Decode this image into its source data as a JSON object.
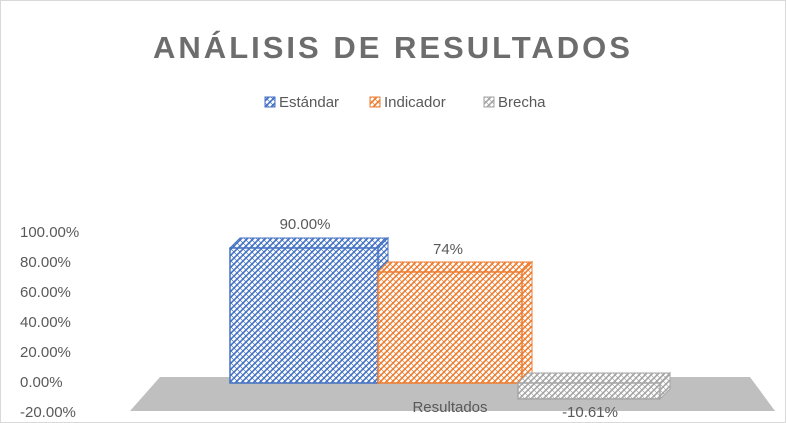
{
  "chart_data": {
    "type": "bar3d",
    "title": "ANÁLISIS DE RESULTADOS",
    "categories": [
      "Resultados"
    ],
    "series": [
      {
        "name": "Estándar",
        "color": "#4472c4",
        "values": [
          90
        ],
        "value_labels": [
          "90.00%"
        ]
      },
      {
        "name": "Indicador",
        "color": "#ed7d31",
        "values": [
          74
        ],
        "value_labels": [
          "74%"
        ]
      },
      {
        "name": "Brecha",
        "color": "#a5a5a5",
        "values": [
          -10.61
        ],
        "value_labels": [
          "-10.61%"
        ]
      }
    ],
    "ylim": [
      -20,
      100
    ],
    "yticks": [
      {
        "value": -20,
        "label": "-20.00%"
      },
      {
        "value": 0,
        "label": "0.00%"
      },
      {
        "value": 20,
        "label": "20.00%"
      },
      {
        "value": 40,
        "label": "40.00%"
      },
      {
        "value": 60,
        "label": "60.00%"
      },
      {
        "value": 80,
        "label": "80.00%"
      },
      {
        "value": 100,
        "label": "100.00%"
      }
    ],
    "legend": "top",
    "grid": false
  }
}
